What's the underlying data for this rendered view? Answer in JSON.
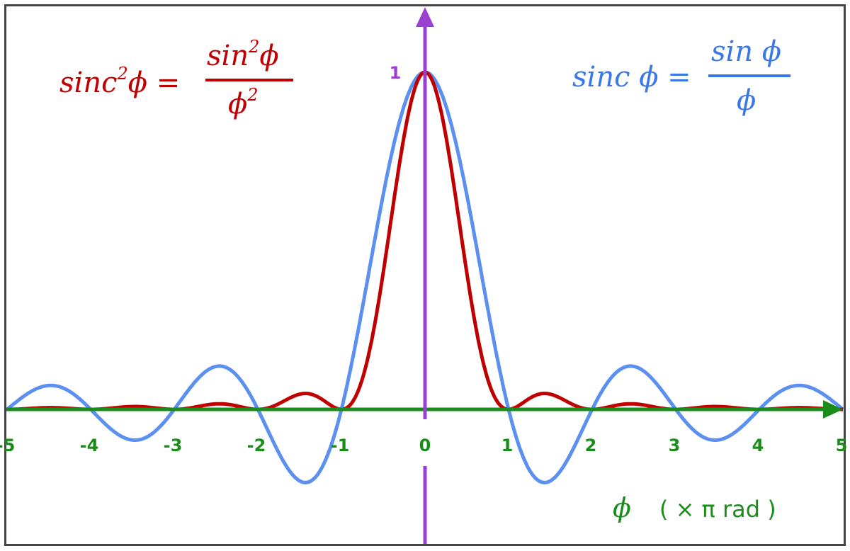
{
  "chart_data": {
    "type": "line",
    "title": "",
    "xlabel_symbol": "ϕ",
    "xlabel_unit": "( × π  rad )",
    "ylabel": "",
    "xlim": [
      -5,
      5
    ],
    "ylim": [
      -0.25,
      1.1
    ],
    "grid": false,
    "x_ticks": [
      "-5",
      "-4",
      "-3",
      "-2",
      "-1",
      "0",
      "1",
      "2",
      "3",
      "4",
      "5"
    ],
    "y_ticks": [
      "1"
    ],
    "colors": {
      "sinc": "#5b8ff0",
      "sinc2": "#c00000",
      "x_axis": "#1a8c1a",
      "y_axis": "#9b3fd1",
      "frame": "#444444"
    },
    "x": [
      -5,
      -4.5,
      -4,
      -3.5,
      -3,
      -2.5,
      -2,
      -1.5,
      -1,
      -0.5,
      0,
      0.5,
      1,
      1.5,
      2,
      2.5,
      3,
      3.5,
      4,
      4.5,
      5
    ],
    "series": [
      {
        "name": "sinc ϕ",
        "values": [
          0,
          0.0707,
          0,
          -0.0909,
          0,
          0.1273,
          0,
          -0.2122,
          0,
          0.6366,
          1,
          0.6366,
          0,
          -0.2122,
          0,
          0.1273,
          0,
          -0.0909,
          0,
          0.0707,
          0
        ]
      },
      {
        "name": "sinc²ϕ",
        "values": [
          0,
          0.005,
          0,
          0.0083,
          0,
          0.0162,
          0,
          0.045,
          0,
          0.4053,
          1,
          0.4053,
          0,
          0.045,
          0,
          0.0162,
          0,
          0.0083,
          0,
          0.005,
          0
        ]
      }
    ],
    "annotations": {
      "sinc2": {
        "lhs": "sinc",
        "lhs_sup": "2",
        "lhs_var": "ϕ =",
        "num": "sin",
        "num_sup": "2",
        "num_var": "ϕ",
        "den": "ϕ",
        "den_sup": "2"
      },
      "sinc": {
        "lhs": "sinc ϕ =",
        "num": "sin ϕ",
        "den": "ϕ"
      }
    }
  }
}
